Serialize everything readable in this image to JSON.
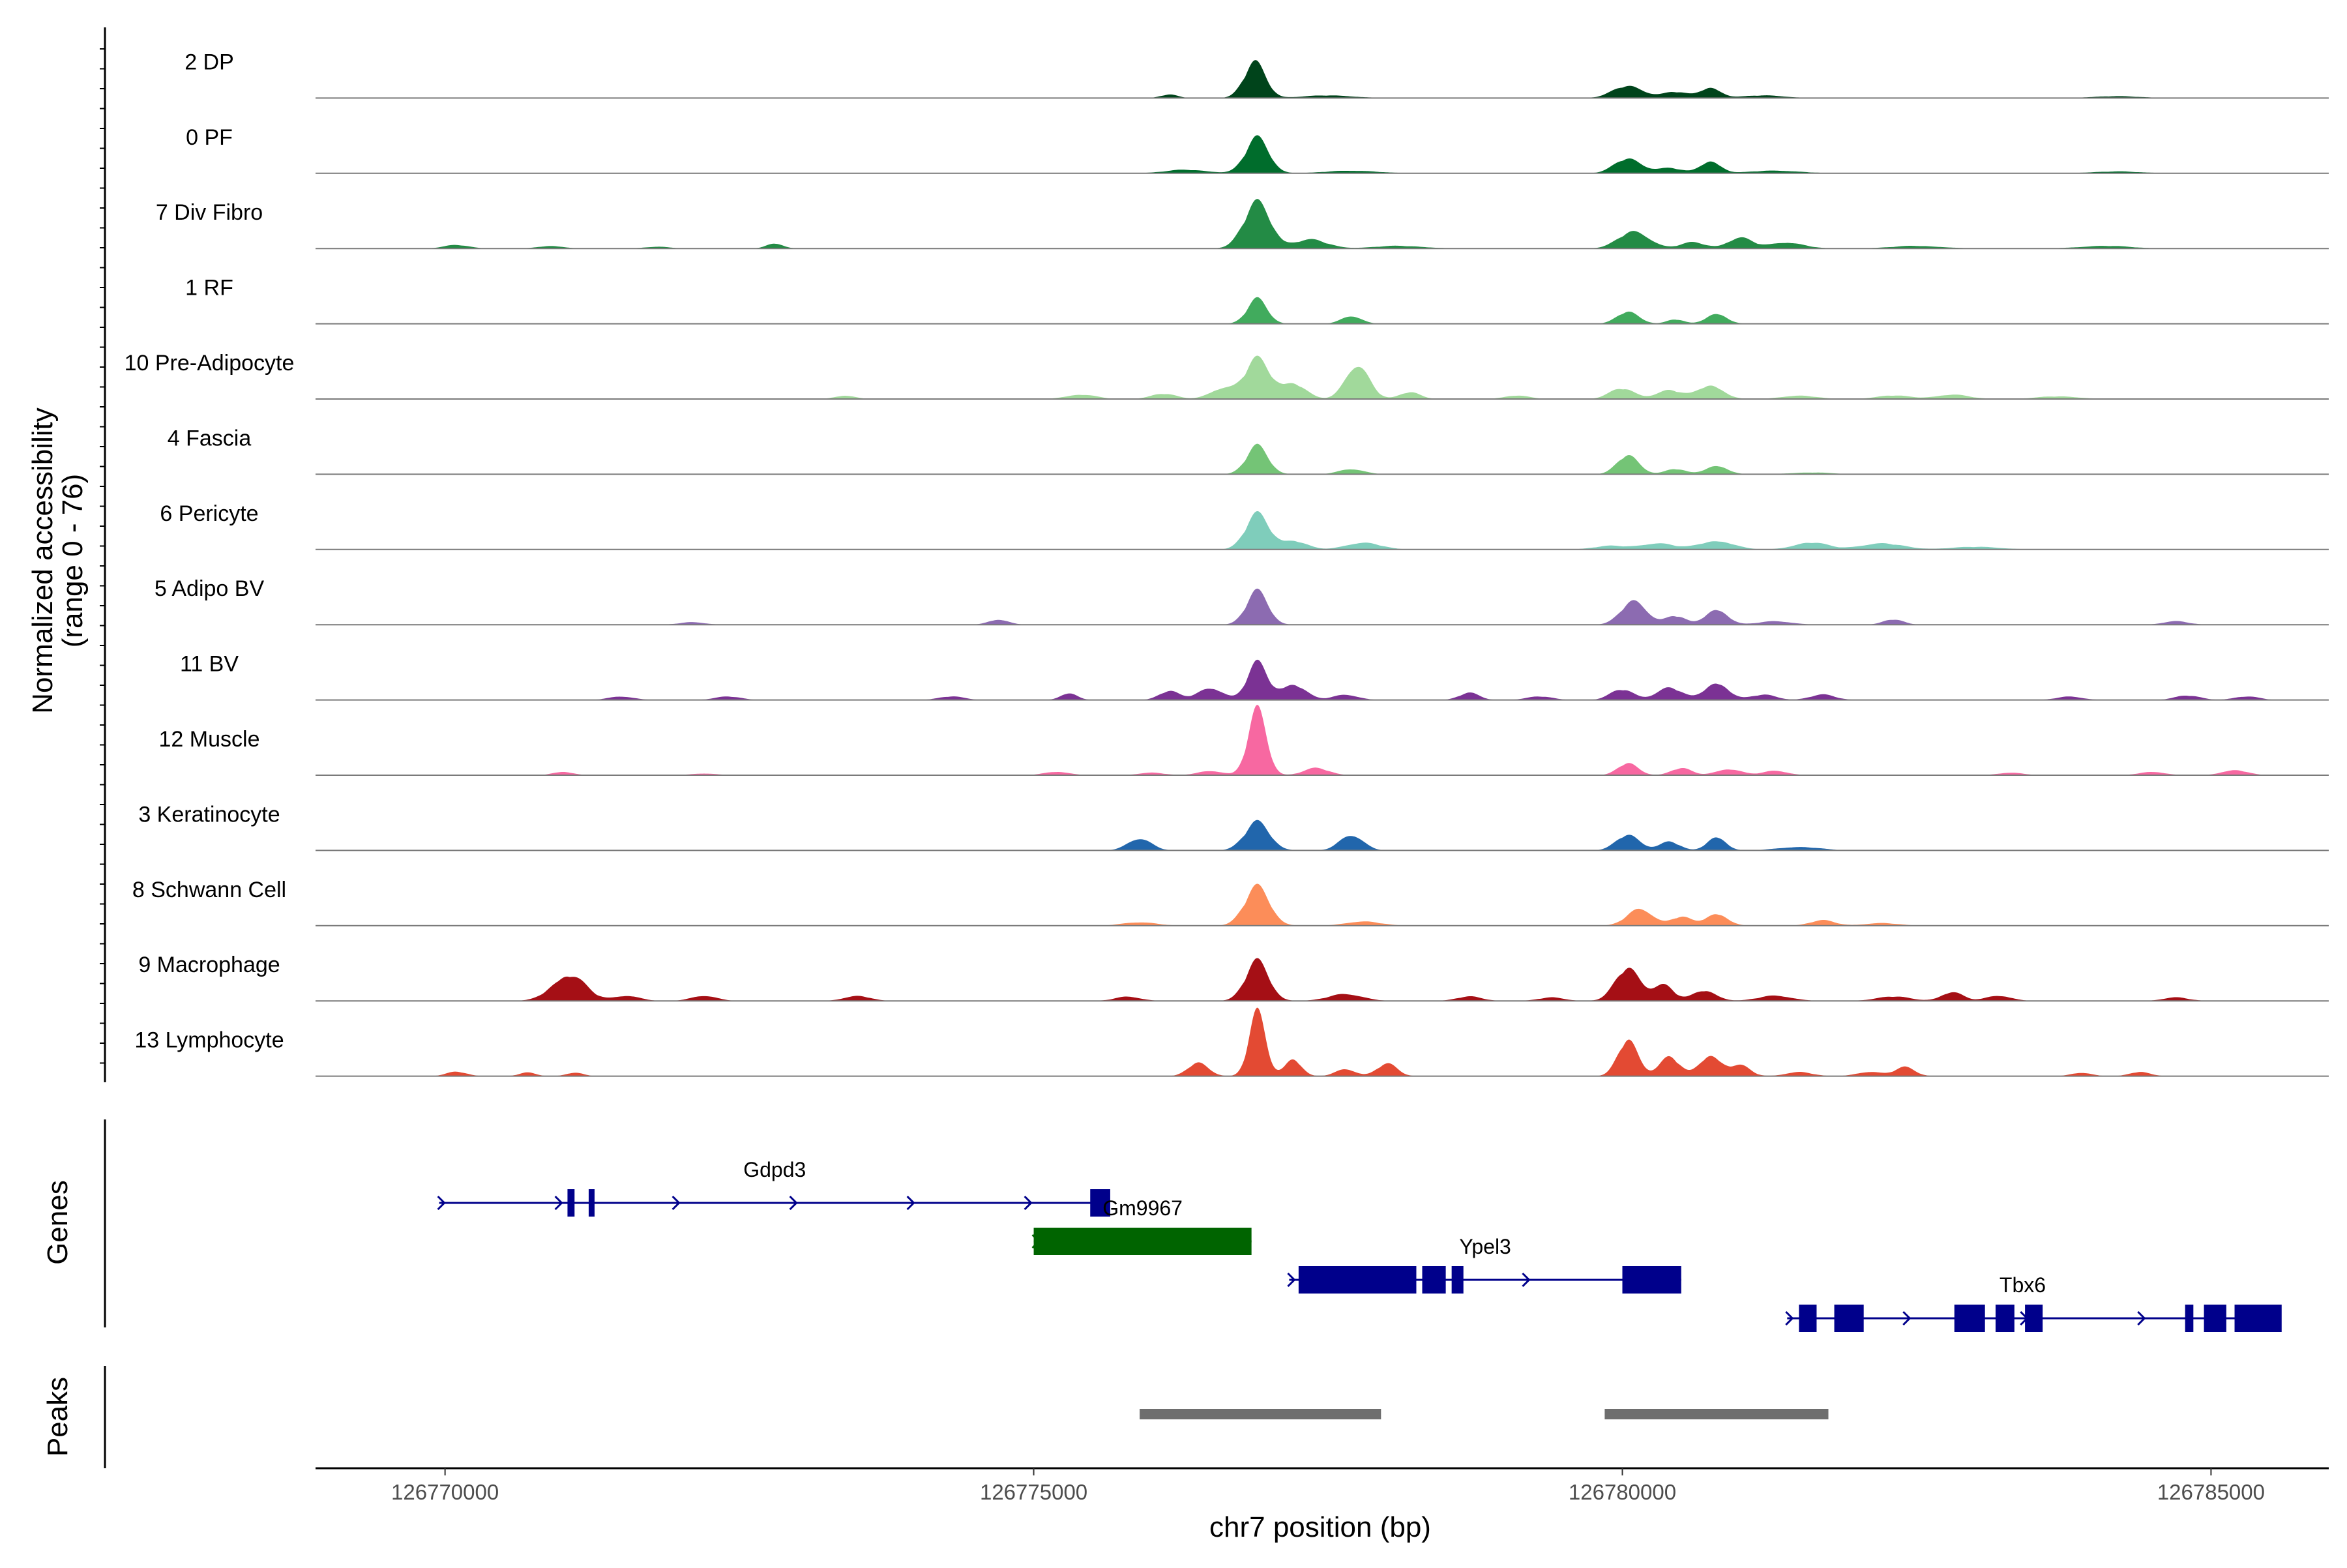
{
  "chart_data": {
    "type": "area",
    "title": "",
    "xlabel": "chr7 position (bp)",
    "ylabel": "Normalized accessibility\n(range 0 - 76)",
    "ylabel_lines": [
      "Normalized accessibility",
      "(range 0 - 76)"
    ],
    "ylim": [
      0,
      76
    ],
    "xlim": [
      126768900,
      126786000
    ],
    "x_ticks": [
      126770000,
      126775000,
      126780000,
      126785000
    ],
    "x_tick_labels": [
      "126770000",
      "126775000",
      "126780000",
      "126785000"
    ],
    "panel_titles": {
      "genes": "Genes",
      "peaks": "Peaks"
    },
    "series": [
      {
        "name": "2 DP",
        "color": "#00441b",
        "peaks": [
          [
            126776880,
            40,
            130
          ],
          [
            126776150,
            4,
            100
          ],
          [
            126777500,
            3,
            300
          ],
          [
            126780050,
            14,
            180
          ],
          [
            126780450,
            7,
            150
          ],
          [
            126780750,
            12,
            120
          ],
          [
            126781200,
            3,
            250
          ],
          [
            126784200,
            2,
            300
          ]
        ]
      },
      {
        "name": "0 PF",
        "color": "#006d2c",
        "peaks": [
          [
            126776900,
            40,
            140
          ],
          [
            126776300,
            4,
            250
          ],
          [
            126777700,
            3,
            300
          ],
          [
            126780050,
            17,
            160
          ],
          [
            126780400,
            6,
            150
          ],
          [
            126780750,
            14,
            120
          ],
          [
            126781300,
            3,
            300
          ],
          [
            126784200,
            2,
            300
          ]
        ]
      },
      {
        "name": "7 Div Fibro",
        "color": "#238b45",
        "peaks": [
          [
            126770100,
            4,
            150
          ],
          [
            126770900,
            3,
            150
          ],
          [
            126771800,
            2,
            150
          ],
          [
            126772800,
            6,
            100
          ],
          [
            126776900,
            52,
            160
          ],
          [
            126777350,
            10,
            200
          ],
          [
            126778100,
            3,
            300
          ],
          [
            126780100,
            20,
            180
          ],
          [
            126780600,
            7,
            150
          ],
          [
            126781000,
            12,
            150
          ],
          [
            126781400,
            7,
            200
          ],
          [
            126782500,
            3,
            300
          ],
          [
            126784100,
            3,
            300
          ]
        ]
      },
      {
        "name": "1 RF",
        "color": "#41ab5d",
        "peaks": [
          [
            126776900,
            28,
            120
          ],
          [
            126777700,
            9,
            120
          ],
          [
            126780050,
            14,
            130
          ],
          [
            126780450,
            5,
            100
          ],
          [
            126780800,
            12,
            120
          ]
        ]
      },
      {
        "name": "10 Pre-Adipocyte",
        "color": "#a1d99b",
        "peaks": [
          [
            126773400,
            4,
            120
          ],
          [
            126775400,
            5,
            180
          ],
          [
            126776100,
            6,
            150
          ],
          [
            126776600,
            12,
            150
          ],
          [
            126776900,
            45,
            150
          ],
          [
            126777200,
            18,
            150
          ],
          [
            126777750,
            40,
            140
          ],
          [
            126778200,
            8,
            120
          ],
          [
            126779100,
            4,
            150
          ],
          [
            126780000,
            12,
            150
          ],
          [
            126780400,
            10,
            150
          ],
          [
            126780750,
            16,
            150
          ],
          [
            126781500,
            4,
            200
          ],
          [
            126782300,
            4,
            200
          ],
          [
            126782800,
            5,
            200
          ],
          [
            126783700,
            3,
            250
          ]
        ]
      },
      {
        "name": "4 Fascia",
        "color": "#74c476",
        "peaks": [
          [
            126776900,
            32,
            130
          ],
          [
            126777700,
            6,
            150
          ],
          [
            126780050,
            22,
            130
          ],
          [
            126780450,
            6,
            120
          ],
          [
            126780800,
            10,
            130
          ],
          [
            126781600,
            2,
            250
          ]
        ]
      },
      {
        "name": "6 Pericyte",
        "color": "#7fcdbb",
        "peaks": [
          [
            126776900,
            40,
            140
          ],
          [
            126777200,
            10,
            160
          ],
          [
            126777800,
            8,
            200
          ],
          [
            126779900,
            4,
            200
          ],
          [
            126780300,
            7,
            200
          ],
          [
            126780800,
            10,
            200
          ],
          [
            126781600,
            8,
            200
          ],
          [
            126782200,
            7,
            250
          ],
          [
            126783000,
            3,
            300
          ]
        ]
      },
      {
        "name": "5 Adipo BV",
        "color": "#8c6bb1",
        "peaks": [
          [
            126776900,
            38,
            130
          ],
          [
            126780100,
            28,
            150
          ],
          [
            126780450,
            10,
            120
          ],
          [
            126780800,
            18,
            130
          ],
          [
            126781300,
            4,
            200
          ],
          [
            126772100,
            3,
            150
          ],
          [
            126774700,
            6,
            120
          ],
          [
            126782300,
            6,
            120
          ],
          [
            126784700,
            4,
            150
          ]
        ]
      },
      {
        "name": "11 BV",
        "color": "#7b3294",
        "peaks": [
          [
            126771500,
            4,
            150
          ],
          [
            126772400,
            4,
            150
          ],
          [
            126774300,
            4,
            150
          ],
          [
            126775300,
            8,
            100
          ],
          [
            126776150,
            10,
            120
          ],
          [
            126776500,
            14,
            150
          ],
          [
            126776900,
            42,
            120
          ],
          [
            126777200,
            18,
            150
          ],
          [
            126777650,
            6,
            150
          ],
          [
            126778700,
            8,
            120
          ],
          [
            126779300,
            4,
            150
          ],
          [
            126780000,
            12,
            140
          ],
          [
            126780400,
            14,
            150
          ],
          [
            126780800,
            20,
            140
          ],
          [
            126781200,
            6,
            150
          ],
          [
            126781700,
            6,
            150
          ],
          [
            126783800,
            4,
            150
          ],
          [
            126784800,
            5,
            150
          ],
          [
            126785300,
            4,
            150
          ]
        ]
      },
      {
        "name": "12 Muscle",
        "color": "#f768a1",
        "peaks": [
          [
            126771000,
            4,
            120
          ],
          [
            126772200,
            2,
            150
          ],
          [
            126775200,
            4,
            150
          ],
          [
            126776000,
            3,
            150
          ],
          [
            126776500,
            5,
            150
          ],
          [
            126776900,
            74,
            110
          ],
          [
            126777400,
            8,
            150
          ],
          [
            126780050,
            14,
            120
          ],
          [
            126780500,
            8,
            120
          ],
          [
            126780900,
            7,
            150
          ],
          [
            126781300,
            5,
            150
          ],
          [
            126783300,
            3,
            150
          ],
          [
            126784500,
            4,
            150
          ],
          [
            126785200,
            6,
            150
          ]
        ]
      },
      {
        "name": "3 Keratinocyte",
        "color": "#2166ac",
        "peaks": [
          [
            126775900,
            14,
            140
          ],
          [
            126776900,
            32,
            150
          ],
          [
            126777700,
            18,
            140
          ],
          [
            126780050,
            18,
            140
          ],
          [
            126780400,
            10,
            120
          ],
          [
            126780800,
            16,
            110
          ],
          [
            126781500,
            4,
            250
          ]
        ]
      },
      {
        "name": "8 Schwann Cell",
        "color": "#fc8d59",
        "peaks": [
          [
            126775900,
            4,
            200
          ],
          [
            126776900,
            44,
            150
          ],
          [
            126777800,
            5,
            200
          ],
          [
            126780150,
            20,
            150
          ],
          [
            126780500,
            10,
            120
          ],
          [
            126780800,
            14,
            130
          ],
          [
            126781700,
            6,
            150
          ],
          [
            126782200,
            3,
            200
          ]
        ]
      },
      {
        "name": "9 Macrophage",
        "color": "#a50f15",
        "peaks": [
          [
            126771050,
            30,
            200
          ],
          [
            126771550,
            6,
            150
          ],
          [
            126772200,
            6,
            150
          ],
          [
            126773500,
            6,
            150
          ],
          [
            126775800,
            5,
            150
          ],
          [
            126776900,
            45,
            140
          ],
          [
            126777650,
            8,
            200
          ],
          [
            126778700,
            5,
            150
          ],
          [
            126779400,
            4,
            150
          ],
          [
            126780050,
            38,
            150
          ],
          [
            126780350,
            18,
            120
          ],
          [
            126780700,
            12,
            140
          ],
          [
            126781300,
            6,
            200
          ],
          [
            126782300,
            5,
            200
          ],
          [
            126782800,
            10,
            130
          ],
          [
            126783200,
            6,
            150
          ],
          [
            126784700,
            4,
            150
          ]
        ]
      },
      {
        "name": "13 Lymphocyte",
        "color": "#e34a33",
        "peaks": [
          [
            126770100,
            5,
            120
          ],
          [
            126770700,
            4,
            100
          ],
          [
            126771100,
            4,
            100
          ],
          [
            126776400,
            16,
            120
          ],
          [
            126776900,
            72,
            100
          ],
          [
            126777200,
            20,
            100
          ],
          [
            126777650,
            8,
            120
          ],
          [
            126778000,
            14,
            120
          ],
          [
            126780050,
            42,
            120
          ],
          [
            126780400,
            22,
            120
          ],
          [
            126780750,
            24,
            130
          ],
          [
            126781000,
            12,
            120
          ],
          [
            126781500,
            5,
            150
          ],
          [
            126782100,
            5,
            150
          ],
          [
            126782400,
            10,
            120
          ],
          [
            126783900,
            4,
            120
          ],
          [
            126784400,
            5,
            120
          ]
        ]
      }
    ],
    "genes": [
      {
        "name": "Gdpd3",
        "color": "#00008b",
        "start": 126769950,
        "end": 126775650,
        "row": 2,
        "strand": "+",
        "exons": [
          [
            126771040,
            126771100
          ],
          [
            126771220,
            126771270
          ],
          [
            126775480,
            126775650
          ]
        ]
      },
      {
        "name": "Gm9967",
        "color": "#006400",
        "start": 126775000,
        "end": 126776850,
        "row": 1,
        "strand": "+",
        "exons": [
          [
            126775000,
            126776850
          ]
        ]
      },
      {
        "name": "Ypel3",
        "color": "#00008b",
        "start": 126777170,
        "end": 126780500,
        "row": 0,
        "strand": "+",
        "exons": [
          [
            126777250,
            126778250
          ],
          [
            126778300,
            126778500
          ],
          [
            126778550,
            126778650
          ],
          [
            126780000,
            126780500
          ]
        ]
      },
      {
        "name": "Tbx6",
        "color": "#00008b",
        "start": 126781400,
        "end": 126785400,
        "row": -1,
        "strand": "+",
        "exons": [
          [
            126781500,
            126781650
          ],
          [
            126781800,
            126782050
          ],
          [
            126782820,
            126783080
          ],
          [
            126783170,
            126783330
          ],
          [
            126783420,
            126783570
          ],
          [
            126784780,
            126784850
          ],
          [
            126784940,
            126785130
          ],
          [
            126785200,
            126785600
          ]
        ]
      }
    ],
    "peak_regions": [
      [
        126775900,
        126777950
      ],
      [
        126779850,
        126781750
      ]
    ],
    "peak_color": "#6e6e6e"
  }
}
